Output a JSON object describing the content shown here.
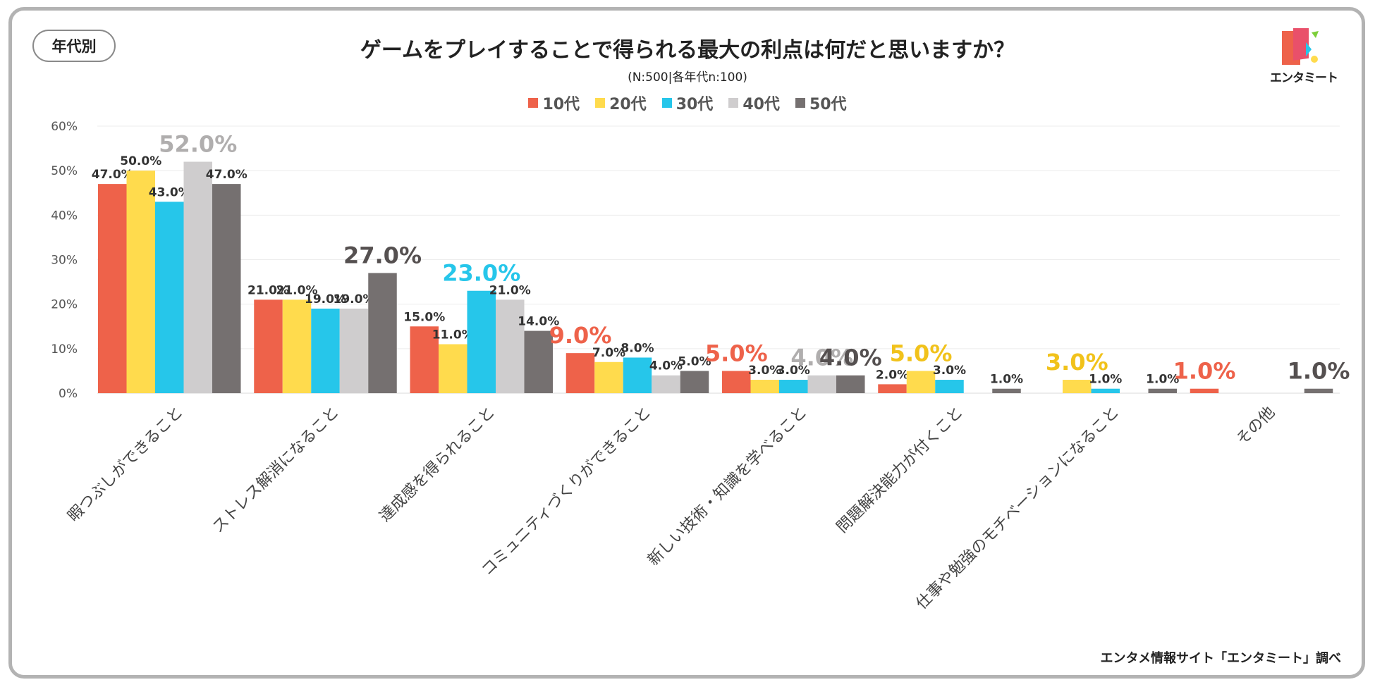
{
  "header": {
    "tag": "年代別",
    "title": "ゲームをプレイすることで得られる最大の利点は何だと思いますか？",
    "subtitle": "(N:500|各年代n:100)"
  },
  "logo": {
    "text": "エンタミート"
  },
  "footer": {
    "source": "エンタメ情報サイト「エンタミート」調べ"
  },
  "colors": {
    "series": [
      "#ee624a",
      "#ffdb4d",
      "#26c6ea",
      "#cfcdce",
      "#757070"
    ]
  },
  "chart_data": {
    "type": "bar",
    "categories": [
      "暇つぶしができること",
      "ストレス解消になること",
      "達成感を得られること",
      "コミュニティづくりができること",
      "新しい技術・知識を学べること",
      "問題解決能力が付くこと",
      "仕事や勉強のモチベーションになること",
      "その他"
    ],
    "series": [
      {
        "name": "10代",
        "values": [
          47.0,
          21.0,
          15.0,
          9.0,
          5.0,
          2.0,
          0,
          1.0
        ]
      },
      {
        "name": "20代",
        "values": [
          50.0,
          21.0,
          11.0,
          7.0,
          3.0,
          5.0,
          3.0,
          0
        ]
      },
      {
        "name": "30代",
        "values": [
          43.0,
          19.0,
          23.0,
          8.0,
          3.0,
          3.0,
          1.0,
          0
        ]
      },
      {
        "name": "40代",
        "values": [
          52.0,
          19.0,
          21.0,
          4.0,
          4.0,
          0,
          0,
          0
        ]
      },
      {
        "name": "50代",
        "values": [
          47.0,
          27.0,
          14.0,
          5.0,
          4.0,
          1.0,
          1.0,
          1.0
        ]
      }
    ],
    "highlights": [
      {
        "category": 0,
        "series": 3
      },
      {
        "category": 1,
        "series": 4
      },
      {
        "category": 2,
        "series": 2
      },
      {
        "category": 3,
        "series": 0
      },
      {
        "category": 4,
        "series": 0
      },
      {
        "category": 4,
        "series": 3
      },
      {
        "category": 4,
        "series": 4
      },
      {
        "category": 5,
        "series": 1
      },
      {
        "category": 6,
        "series": 1
      },
      {
        "category": 7,
        "series": 0
      },
      {
        "category": 7,
        "series": 4
      }
    ],
    "y_ticks": [
      "0%",
      "10%",
      "20%",
      "30%",
      "40%",
      "50%",
      "60%"
    ],
    "ylim": [
      0,
      60
    ],
    "grid": true,
    "legend": "top"
  }
}
